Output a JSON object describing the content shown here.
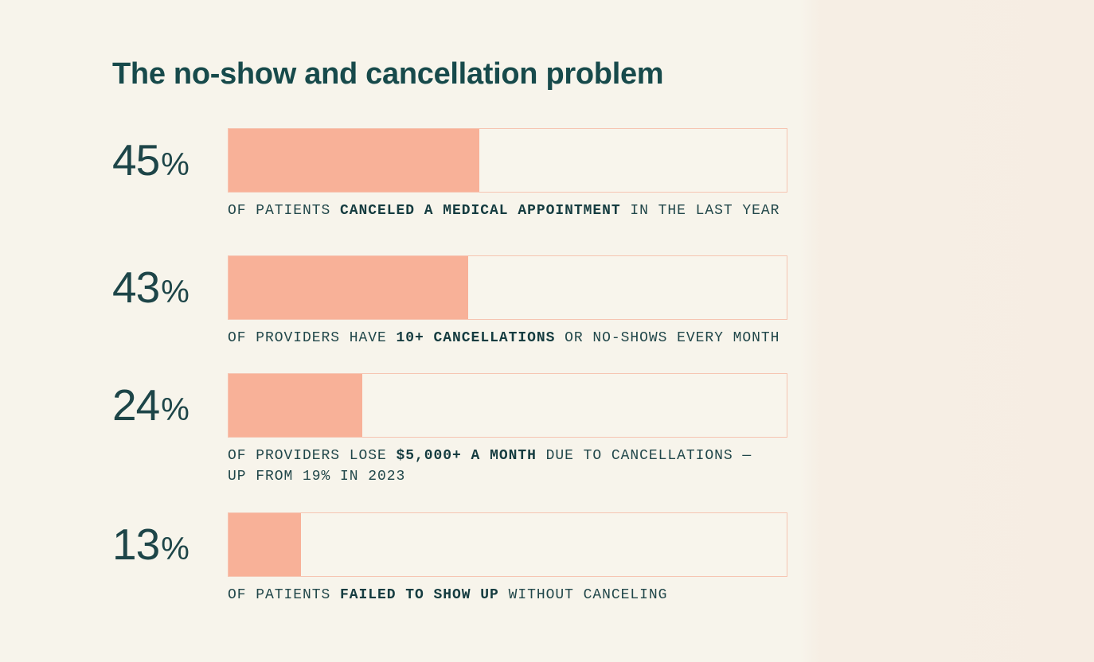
{
  "chart_data": {
    "type": "bar",
    "title": "The no-show and cancellation problem",
    "orientation": "horizontal",
    "xlim": [
      0,
      100
    ],
    "unit": "%",
    "colors": {
      "fill": "#f8b198",
      "track": "#f8f5ec",
      "border": "#f6c5b2",
      "text": "#174a4b"
    },
    "rows": [
      {
        "value": 45,
        "value_label": "45",
        "symbol": "%",
        "caption": [
          [
            {
              "t": "OF PATIENTS ",
              "b": false
            },
            {
              "t": "CANCELED A MEDICAL APPOINTMENT",
              "b": true
            },
            {
              "t": " IN THE LAST YEAR",
              "b": false
            }
          ]
        ]
      },
      {
        "value": 43,
        "value_label": "43",
        "symbol": "%",
        "caption": [
          [
            {
              "t": "OF PROVIDERS HAVE ",
              "b": false
            },
            {
              "t": "10+ CANCELLATIONS",
              "b": true
            },
            {
              "t": " OR NO-SHOWS EVERY MONTH",
              "b": false
            }
          ]
        ]
      },
      {
        "value": 24,
        "value_label": "24",
        "symbol": "%",
        "caption": [
          [
            {
              "t": "OF PROVIDERS LOSE ",
              "b": false
            },
            {
              "t": "$5,000+ A MONTH",
              "b": true
            },
            {
              "t": " DUE TO CANCELLATIONS —",
              "b": false
            }
          ],
          [
            {
              "t": "UP FROM 19% IN 2023",
              "b": false
            }
          ]
        ]
      },
      {
        "value": 13,
        "value_label": "13",
        "symbol": "%",
        "caption": [
          [
            {
              "t": "OF PATIENTS ",
              "b": false
            },
            {
              "t": "FAILED TO SHOW UP",
              "b": true
            },
            {
              "t": " WITHOUT CANCELING",
              "b": false
            }
          ]
        ]
      }
    ]
  }
}
